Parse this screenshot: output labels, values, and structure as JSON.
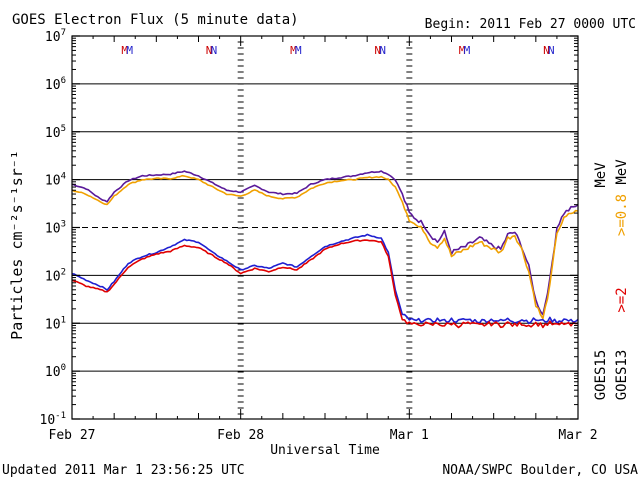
{
  "chart_data": {
    "type": "line",
    "title": "GOES Electron Flux (5 minute data)",
    "begin_label": "Begin: 2011 Feb 27 0000 UTC",
    "xlabel": "Universal Time",
    "ylabel": "Particles cm⁻²s⁻¹sr⁻¹",
    "x_ticks": [
      "Feb 27",
      "Feb 28",
      "Mar 1",
      "Mar 2"
    ],
    "xlim_hours": [
      0,
      72
    ],
    "y_scale": "log",
    "ylim": [
      0.1,
      10000000
    ],
    "y_ticks": [
      {
        "base": "10",
        "exp": "7",
        "value": 10000000
      },
      {
        "base": "10",
        "exp": "6",
        "value": 1000000
      },
      {
        "base": "10",
        "exp": "5",
        "value": 100000
      },
      {
        "base": "10",
        "exp": "4",
        "value": 10000
      },
      {
        "base": "10",
        "exp": "3",
        "value": 1000
      },
      {
        "base": "10",
        "exp": "2",
        "value": 100
      },
      {
        "base": "10",
        "exp": "1",
        "value": 10
      },
      {
        "base": "10",
        "exp": "0",
        "value": 1
      },
      {
        "base": "10",
        "exp": "-1",
        "value": 0.1
      }
    ],
    "threshold_value": 1000,
    "markers": [
      {
        "text": "M",
        "hour": 7.5,
        "color": "#cc0000"
      },
      {
        "text": "M",
        "hour": 8.2,
        "color": "#2222cc"
      },
      {
        "text": "N",
        "hour": 19.5,
        "color": "#cc0000"
      },
      {
        "text": "N",
        "hour": 20.2,
        "color": "#2222cc"
      },
      {
        "text": "M",
        "hour": 31.5,
        "color": "#cc0000"
      },
      {
        "text": "M",
        "hour": 32.2,
        "color": "#2222cc"
      },
      {
        "text": "N",
        "hour": 43.5,
        "color": "#cc0000"
      },
      {
        "text": "N",
        "hour": 44.2,
        "color": "#2222cc"
      },
      {
        "text": "M",
        "hour": 55.5,
        "color": "#cc0000"
      },
      {
        "text": "M",
        "hour": 56.2,
        "color": "#2222cc"
      },
      {
        "text": "N",
        "hour": 67.5,
        "color": "#cc0000"
      },
      {
        "text": "N",
        "hour": 68.2,
        "color": "#2222cc"
      }
    ],
    "legend": {
      "energy_08": "MeV",
      "energy_08_label": ">=0.8",
      "energy_2": "MeV",
      "energy_2_label": ">=2",
      "sat_15": "GOES15",
      "sat_13": "GOES13",
      "color_08": "#f0a000",
      "color_2": "#e00000"
    },
    "x": [
      0,
      2,
      4,
      5,
      6,
      8,
      10,
      12,
      14,
      16,
      18,
      20,
      22,
      24,
      26,
      28,
      30,
      32,
      34,
      36,
      38,
      40,
      42,
      44,
      45,
      46,
      47,
      48,
      49,
      50,
      51,
      52,
      53,
      54,
      55,
      56,
      58,
      60,
      61,
      62,
      63,
      64,
      65,
      66,
      67,
      68,
      69,
      70,
      71,
      72
    ],
    "series": [
      {
        "name": "GOES15 >=0.8 MeV",
        "color": "#5a1a9a",
        "values": [
          8000,
          6500,
          4000,
          3500,
          5500,
          9500,
          12000,
          12500,
          13000,
          15000,
          12000,
          8500,
          6000,
          5500,
          7500,
          5500,
          5000,
          5200,
          8000,
          10000,
          11000,
          12000,
          14000,
          15000,
          13000,
          10000,
          5000,
          2000,
          1500,
          1200,
          700,
          500,
          800,
          300,
          350,
          400,
          600,
          400,
          350,
          700,
          800,
          400,
          150,
          30,
          15,
          80,
          1000,
          2000,
          2500,
          3000
        ]
      },
      {
        "name": "GOES13 >=0.8 MeV",
        "color": "#f0a000",
        "values": [
          6000,
          5000,
          3500,
          3000,
          4500,
          8000,
          10000,
          10500,
          10500,
          12000,
          10000,
          7000,
          5000,
          4500,
          6000,
          4500,
          4000,
          4300,
          6500,
          8500,
          9500,
          10000,
          11000,
          11500,
          10000,
          7000,
          3500,
          1500,
          1100,
          900,
          500,
          400,
          600,
          250,
          300,
          350,
          500,
          350,
          300,
          600,
          700,
          350,
          120,
          25,
          12,
          60,
          800,
          1500,
          2000,
          2200
        ]
      },
      {
        "name": "GOES15 >=2 MeV",
        "color": "#1f1fd0",
        "values": [
          110,
          80,
          60,
          50,
          75,
          180,
          250,
          300,
          400,
          550,
          500,
          300,
          200,
          130,
          160,
          140,
          180,
          150,
          250,
          400,
          500,
          600,
          700,
          600,
          300,
          50,
          15,
          12,
          11,
          12,
          11,
          12,
          11,
          12,
          11,
          12,
          11,
          12,
          11,
          12,
          11,
          12,
          11,
          12,
          11,
          12,
          11,
          12,
          11,
          12
        ]
      },
      {
        "name": "GOES13 >=2 MeV",
        "color": "#e00000",
        "values": [
          80,
          60,
          50,
          45,
          65,
          150,
          220,
          280,
          320,
          420,
          380,
          260,
          180,
          110,
          140,
          120,
          150,
          130,
          210,
          350,
          450,
          520,
          550,
          500,
          250,
          40,
          12,
          10,
          9,
          10,
          9,
          10,
          9,
          10,
          9,
          10,
          9,
          10,
          9,
          10,
          9,
          10,
          9,
          10,
          9,
          10,
          9,
          10,
          9,
          10
        ]
      }
    ]
  },
  "footer": {
    "updated": "Updated 2011 Mar  1 23:56:25 UTC",
    "source": "NOAA/SWPC Boulder, CO USA"
  }
}
